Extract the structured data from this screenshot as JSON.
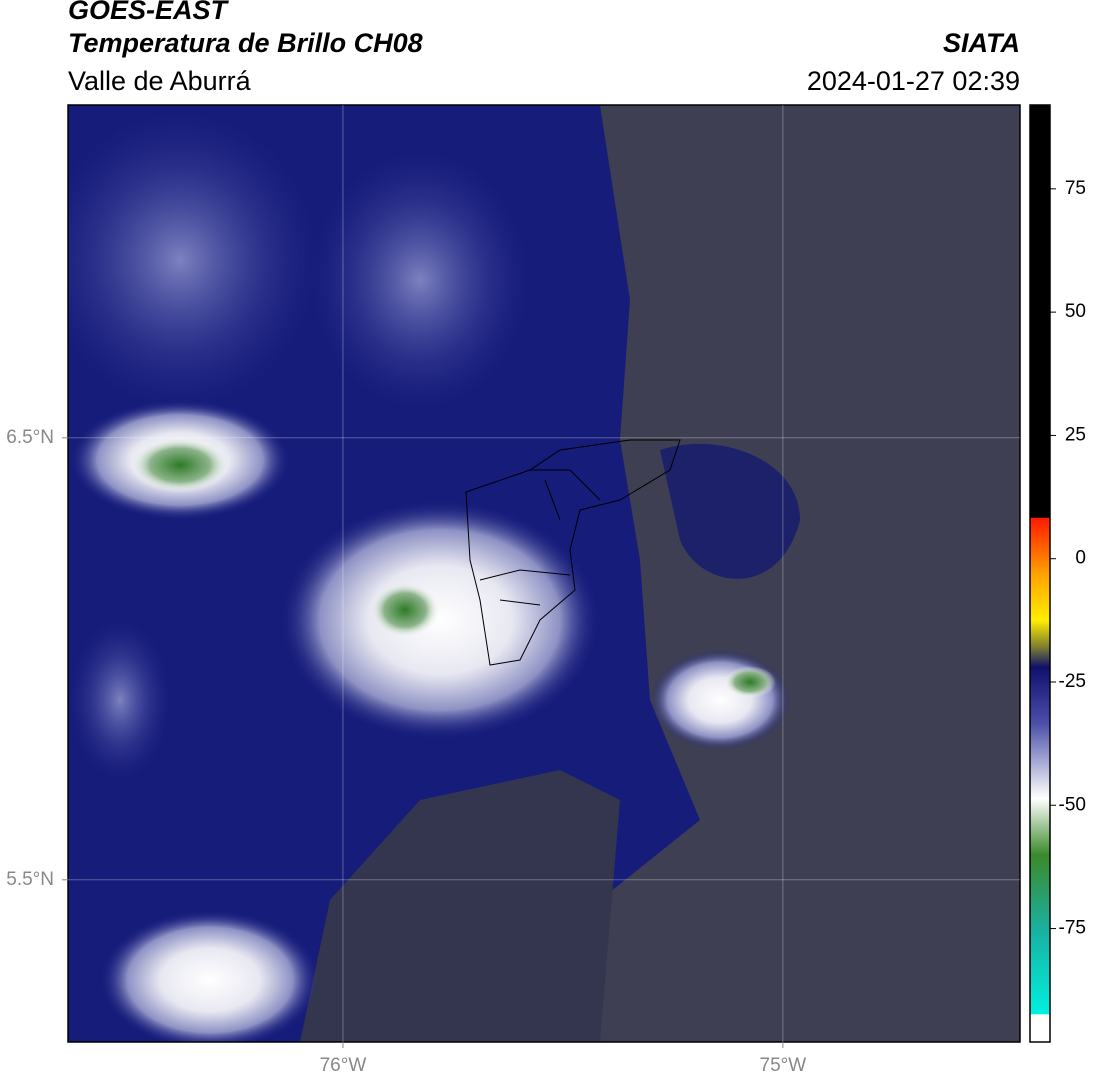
{
  "header": {
    "satellite": "GOES-EAST",
    "product": "Temperatura de Brillo CH08",
    "region": "Valle de Aburrá",
    "source": "SIATA",
    "datetime": "2024-01-27 02:39"
  },
  "map": {
    "xlim": [
      -76.625,
      -74.461
    ],
    "ylim": [
      5.133,
      7.253
    ],
    "xticks": [
      {
        "value": -76,
        "label": "76°W"
      },
      {
        "value": -75,
        "label": "75°W"
      }
    ],
    "yticks": [
      {
        "value": 6.5,
        "label": "6.5°N"
      },
      {
        "value": 5.5,
        "label": "5.5°N"
      }
    ],
    "grid": true
  },
  "colorbar": {
    "lim": [
      -98,
      92
    ],
    "ticks": [
      75,
      50,
      25,
      0,
      -25,
      -50,
      -75
    ]
  }
}
